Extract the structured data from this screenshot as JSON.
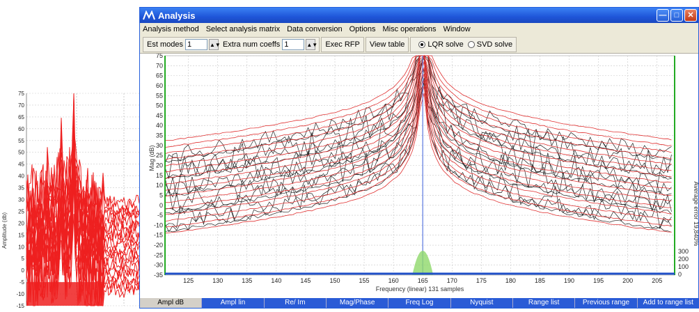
{
  "window": {
    "title": "Analysis"
  },
  "menu": [
    "Analysis method",
    "Select analysis matrix",
    "Data conversion",
    "Options",
    "Misc operations",
    "Window"
  ],
  "toolbar": {
    "est_modes_label": "Est modes",
    "est_modes_value": "1",
    "extra_coeffs_label": "Extra num coeffs",
    "extra_coeffs_value": "1",
    "exec_rfp": "Exec RFP",
    "view_table": "View table",
    "lqr_solve": "LQR solve",
    "svd_solve": "SVD solve"
  },
  "main_plot": {
    "ylabel": "Mag (dB)",
    "xlabel": "Frequency (linear) 131 samples",
    "yticks": [
      "75",
      "70",
      "65",
      "60",
      "55",
      "50",
      "45",
      "40",
      "35",
      "30",
      "25",
      "20",
      "15",
      "10",
      "5",
      "0",
      "-5",
      "-10",
      "-15",
      "-20",
      "-25",
      "-30",
      "-35"
    ],
    "xticks": [
      "125",
      "130",
      "135",
      "140",
      "145",
      "150",
      "155",
      "160",
      "165",
      "170",
      "175",
      "180",
      "185",
      "190",
      "195",
      "200",
      "205"
    ],
    "right_label": "Average error 19,840%",
    "right_ticks": [
      "300",
      "200",
      "100",
      "0"
    ]
  },
  "bg_plot": {
    "ylabel": "Amplitude (db)",
    "yticks": [
      "75",
      "70",
      "65",
      "60",
      "55",
      "50",
      "45",
      "40",
      "35",
      "30",
      "25",
      "20",
      "15",
      "10",
      "5",
      "0",
      "-5",
      "-10",
      "-15"
    ]
  },
  "tabs": [
    "Ampl dB",
    "Ampl lin",
    "Re/ Im",
    "Mag/Phase",
    "Freq Log",
    "Nyquist",
    "Range list",
    "Previous range",
    "Add to range list"
  ],
  "chart_data": [
    {
      "type": "line",
      "title": "",
      "xlabel": "Frequency (linear) 131 samples",
      "ylabel": "Mag (dB)",
      "xlim": [
        121,
        208
      ],
      "ylim": [
        -35,
        75
      ],
      "grid": true,
      "resonance_x": 165,
      "series_note": "",
      "series": []
    },
    {
      "type": "line",
      "title": "",
      "xlabel": "",
      "ylabel": "Amplitude (db)",
      "ylim": [
        -15,
        75
      ],
      "grid": true,
      "series": []
    }
  ]
}
